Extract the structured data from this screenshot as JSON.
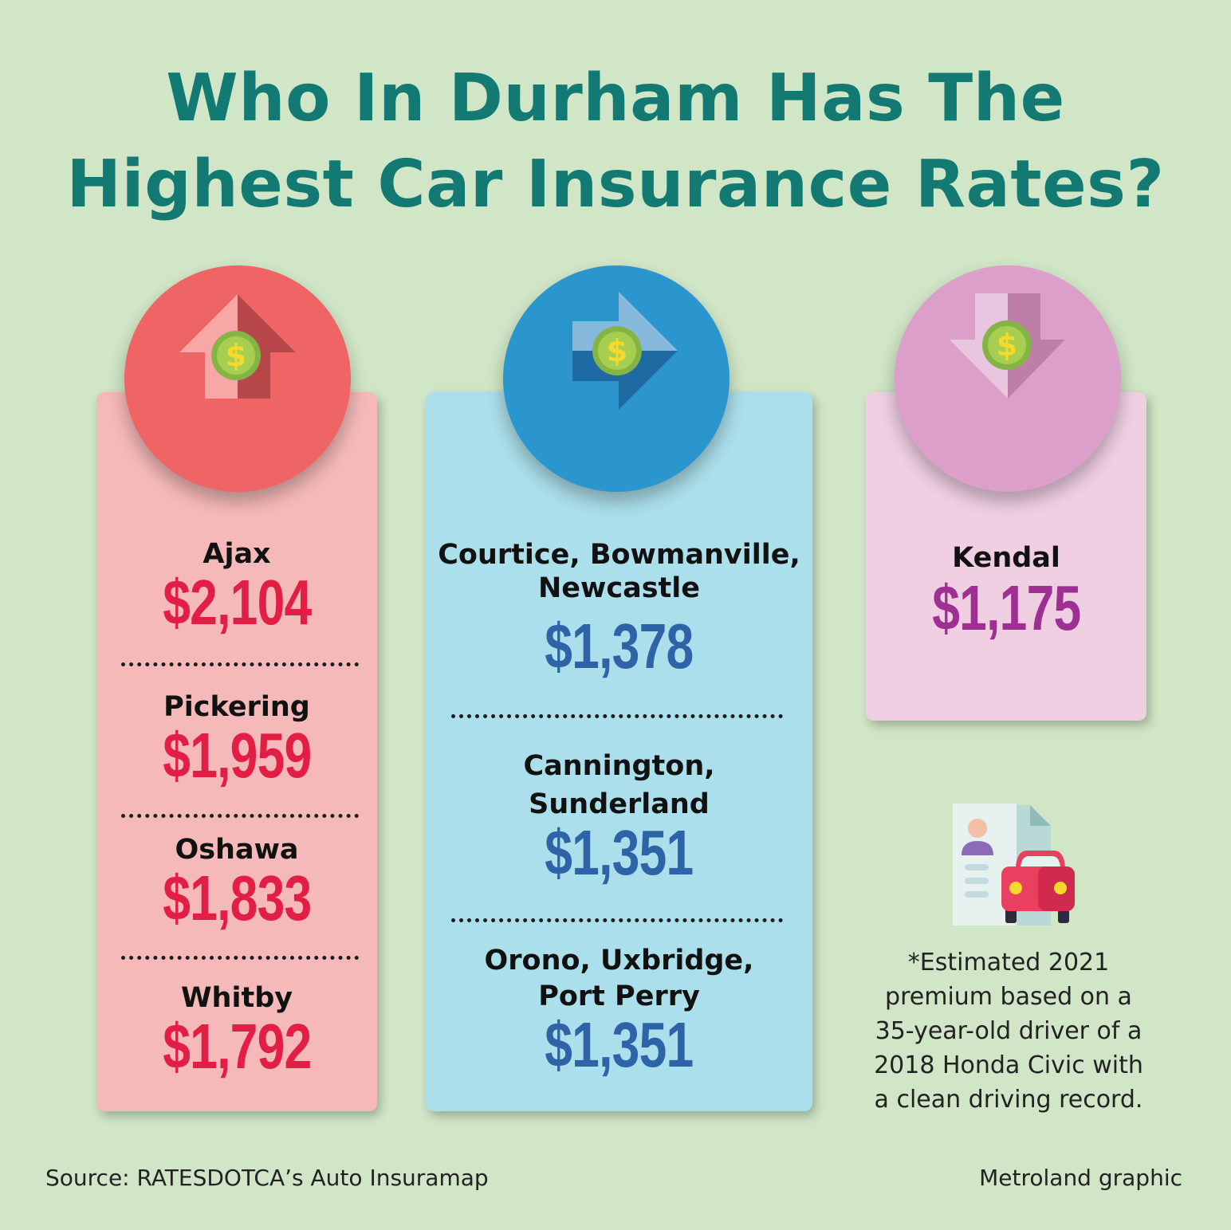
{
  "title": {
    "line1": "Who In Durham Has The",
    "line2": "Highest Car Insurance Rates?"
  },
  "columns": [
    {
      "color": "#ef6465",
      "icon": "arrow-up-dollar-icon",
      "entries": [
        {
          "place": "Ajax",
          "amount": "$2,104"
        },
        {
          "place": "Pickering",
          "amount": "$1,959"
        },
        {
          "place": "Oshawa",
          "amount": "$1,833"
        },
        {
          "place": "Whitby",
          "amount": "$1,792"
        }
      ]
    },
    {
      "color": "#2b95ce",
      "icon": "arrow-right-dollar-icon",
      "entries": [
        {
          "place_line1": "Courtice, Bowmanville,",
          "place_line2": "Newcastle",
          "amount": "$1,378"
        },
        {
          "place_line1": "Cannington,",
          "place_line2": "Sunderland",
          "amount": "$1,351"
        },
        {
          "place_line1": "Orono, Uxbridge,",
          "place_line2": "Port Perry",
          "amount": "$1,351"
        }
      ]
    },
    {
      "color": "#dc9fc9",
      "icon": "arrow-down-dollar-icon",
      "entries": [
        {
          "place": "Kendal",
          "amount": "$1,175"
        }
      ]
    }
  ],
  "note": {
    "line1": "*Estimated 2021",
    "line2": "premium based on a",
    "line3": "35-year-old driver of a",
    "line4": "2018 Honda Civic with",
    "line5": "a clean driving record."
  },
  "note_icon": "driver-document-car-icon",
  "footer": {
    "source": "Source: RATESDOTCA’s Auto Insuramap",
    "credit": "Metroland graphic"
  }
}
